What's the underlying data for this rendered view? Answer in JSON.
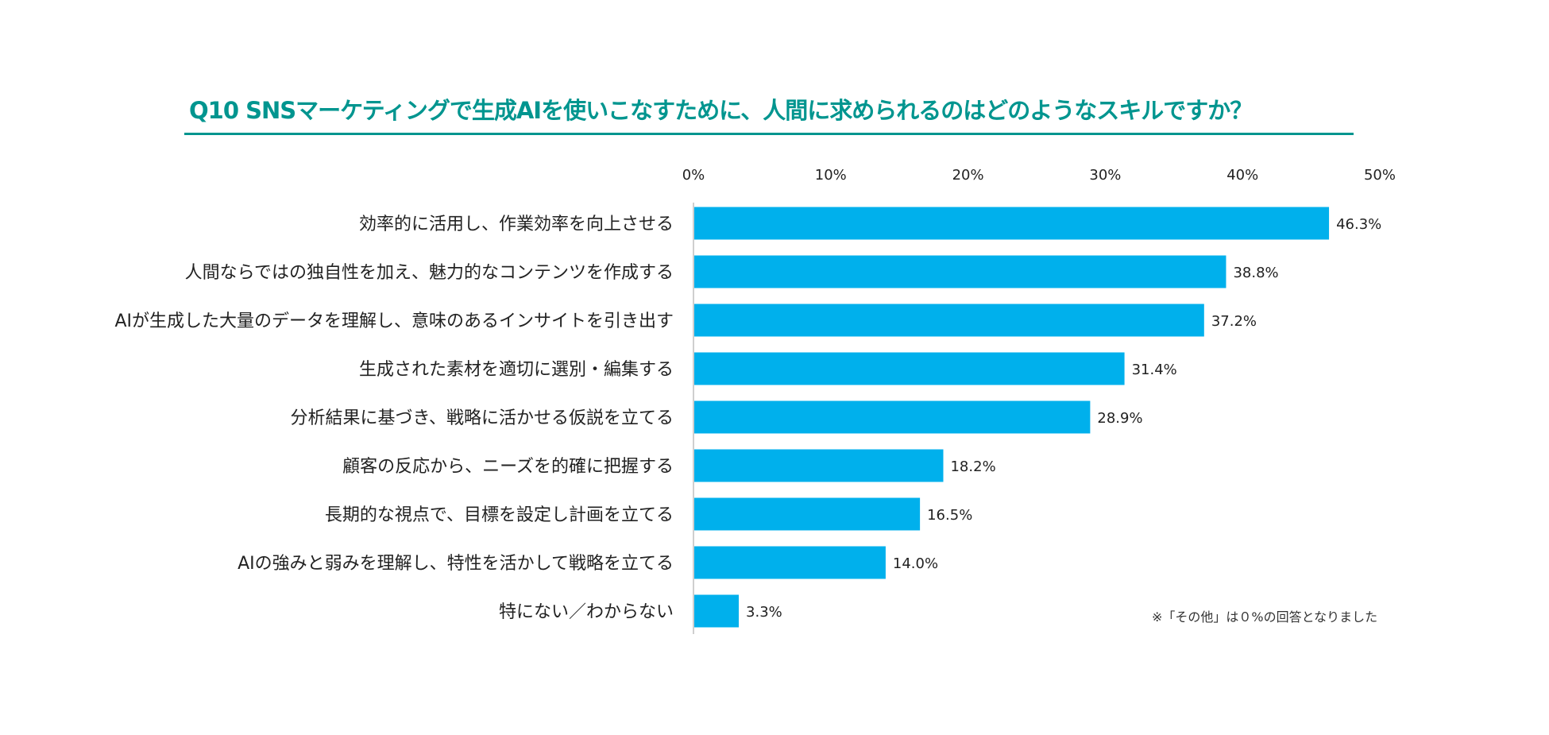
{
  "colors": {
    "title": "#00958f",
    "bar": "#00b0ec",
    "axis": "#bfbfbf"
  },
  "chart_data": {
    "type": "bar",
    "orientation": "horizontal",
    "title": "Q10 SNSマーケティングで生成AIを使いこなすために、人間に求められるのはどのようなスキルですか？",
    "xlim": [
      0,
      50
    ],
    "ticks": [
      "0%",
      "10%",
      "20%",
      "30%",
      "40%",
      "50%"
    ],
    "categories": [
      "効率的に活用し、作業効率を向上させる",
      "人間ならではの独自性を加え、魅力的なコンテンツを作成する",
      "AIが生成した大量のデータを理解し、意味のあるインサイトを引き出す",
      "生成された素材を適切に選別・編集する",
      "分析結果に基づき、戦略に活かせる仮説を立てる",
      "顧客の反応から、ニーズを的確に把握する",
      "長期的な視点で、目標を設定し計画を立てる",
      "AIの強みと弱みを理解し、特性を活かして戦略を立てる",
      "特にない／わからない"
    ],
    "values": [
      46.3,
      38.8,
      37.2,
      31.4,
      28.9,
      18.2,
      16.5,
      14.0,
      3.3
    ],
    "value_labels": [
      "46.3%",
      "38.8%",
      "37.2%",
      "31.4%",
      "28.9%",
      "18.2%",
      "16.5%",
      "14.0%",
      "3.3%"
    ],
    "note": "※「その他」は０%の回答となりました",
    "grid": false,
    "legend": "none"
  }
}
